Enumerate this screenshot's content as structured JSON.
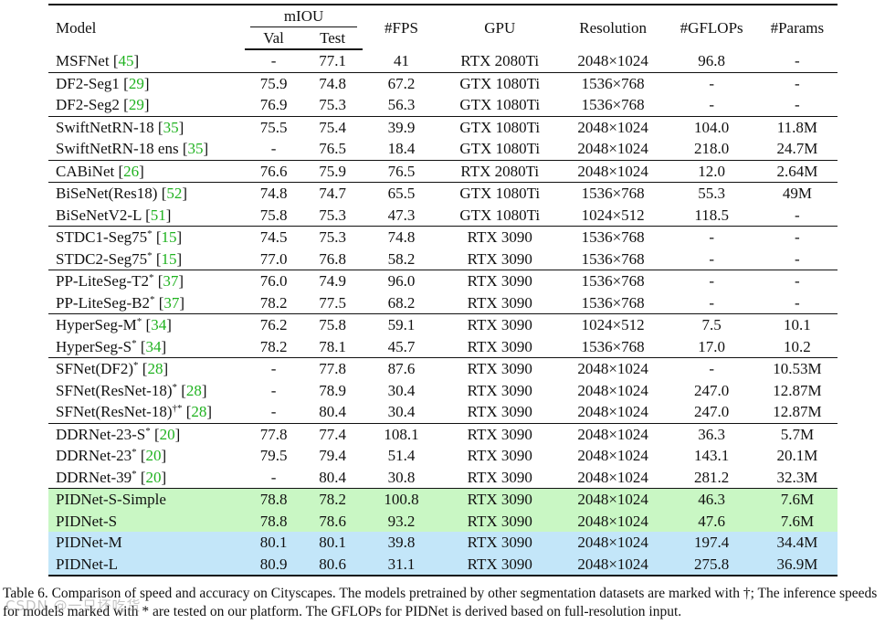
{
  "header": {
    "model": "Model",
    "miou": "mIOU",
    "val": "Val",
    "test": "Test",
    "fps": "#FPS",
    "gpu": "GPU",
    "resolution": "Resolution",
    "gflops": "#GFLOPs",
    "params": "#Params"
  },
  "rows": [
    {
      "name": "MSFNet",
      "sup": "",
      "ref": "45",
      "val": "-",
      "test": "77.1",
      "fps": "41",
      "gpu": "RTX 2080Ti",
      "res": "2048×1024",
      "gflops": "96.8",
      "params": "-"
    },
    {
      "name": "DF2-Seg1",
      "sup": "",
      "ref": "29",
      "val": "75.9",
      "test": "74.8",
      "fps": "67.2",
      "gpu": "GTX 1080Ti",
      "res": "1536×768",
      "gflops": "-",
      "params": "-"
    },
    {
      "name": "DF2-Seg2",
      "sup": "",
      "ref": "29",
      "val": "76.9",
      "test": "75.3",
      "fps": "56.3",
      "gpu": "GTX 1080Ti",
      "res": "1536×768",
      "gflops": "-",
      "params": "-"
    },
    {
      "name": "SwiftNetRN-18",
      "sup": "",
      "ref": "35",
      "val": "75.5",
      "test": "75.4",
      "fps": "39.9",
      "gpu": "GTX 1080Ti",
      "res": "2048×1024",
      "gflops": "104.0",
      "params": "11.8M"
    },
    {
      "name": "SwiftNetRN-18 ens",
      "sup": "",
      "ref": "35",
      "val": "-",
      "test": "76.5",
      "fps": "18.4",
      "gpu": "GTX 1080Ti",
      "res": "2048×1024",
      "gflops": "218.0",
      "params": "24.7M"
    },
    {
      "name": "CABiNet",
      "sup": "",
      "ref": "26",
      "val": "76.6",
      "test": "75.9",
      "fps": "76.5",
      "gpu": "RTX 2080Ti",
      "res": "2048×1024",
      "gflops": "12.0",
      "params": "2.64M"
    },
    {
      "name": "BiSeNet(Res18)",
      "sup": "",
      "ref": "52",
      "val": "74.8",
      "test": "74.7",
      "fps": "65.5",
      "gpu": "GTX 1080Ti",
      "res": "1536×768",
      "gflops": "55.3",
      "params": "49M"
    },
    {
      "name": "BiSeNetV2-L",
      "sup": "",
      "ref": "51",
      "val": "75.8",
      "test": "75.3",
      "fps": "47.3",
      "gpu": "GTX 1080Ti",
      "res": "1024×512",
      "gflops": "118.5",
      "params": "-"
    },
    {
      "name": "STDC1-Seg75",
      "sup": "*",
      "ref": "15",
      "val": "74.5",
      "test": "75.3",
      "fps": "74.8",
      "gpu": "RTX 3090",
      "res": "1536×768",
      "gflops": "-",
      "params": "-"
    },
    {
      "name": "STDC2-Seg75",
      "sup": "*",
      "ref": "15",
      "val": "77.0",
      "test": "76.8",
      "fps": "58.2",
      "gpu": "RTX 3090",
      "res": "1536×768",
      "gflops": "-",
      "params": "-"
    },
    {
      "name": "PP-LiteSeg-T2",
      "sup": "*",
      "ref": "37",
      "val": "76.0",
      "test": "74.9",
      "fps": "96.0",
      "gpu": "RTX 3090",
      "res": "1536×768",
      "gflops": "-",
      "params": "-"
    },
    {
      "name": "PP-LiteSeg-B2",
      "sup": "*",
      "ref": "37",
      "val": "78.2",
      "test": "77.5",
      "fps": "68.2",
      "gpu": "RTX 3090",
      "res": "1536×768",
      "gflops": "-",
      "params": "-"
    },
    {
      "name": "HyperSeg-M",
      "sup": "*",
      "ref": "34",
      "val": "76.2",
      "test": "75.8",
      "fps": "59.1",
      "gpu": "RTX 3090",
      "res": "1024×512",
      "gflops": "7.5",
      "params": "10.1"
    },
    {
      "name": "HyperSeg-S",
      "sup": "*",
      "ref": "34",
      "val": "78.2",
      "test": "78.1",
      "fps": "45.7",
      "gpu": "RTX 3090",
      "res": "1536×768",
      "gflops": "17.0",
      "params": "10.2"
    },
    {
      "name": "SFNet(DF2)",
      "sup": "*",
      "ref": "28",
      "val": "-",
      "test": "77.8",
      "fps": "87.6",
      "gpu": "RTX 3090",
      "res": "2048×1024",
      "gflops": "-",
      "params": "10.53M"
    },
    {
      "name": "SFNet(ResNet-18)",
      "sup": "*",
      "ref": "28",
      "val": "-",
      "test": "78.9",
      "fps": "30.4",
      "gpu": "RTX 3090",
      "res": "2048×1024",
      "gflops": "247.0",
      "params": "12.87M"
    },
    {
      "name": "SFNet(ResNet-18)",
      "sup": "†*",
      "ref": "28",
      "val": "-",
      "test": "80.4",
      "fps": "30.4",
      "gpu": "RTX 3090",
      "res": "2048×1024",
      "gflops": "247.0",
      "params": "12.87M"
    },
    {
      "name": "DDRNet-23-S",
      "sup": "*",
      "ref": "20",
      "val": "77.8",
      "test": "77.4",
      "fps": "108.1",
      "gpu": "RTX 3090",
      "res": "2048×1024",
      "gflops": "36.3",
      "params": "5.7M"
    },
    {
      "name": "DDRNet-23",
      "sup": "*",
      "ref": "20",
      "val": "79.5",
      "test": "79.4",
      "fps": "51.4",
      "gpu": "RTX 3090",
      "res": "2048×1024",
      "gflops": "143.1",
      "params": "20.1M"
    },
    {
      "name": "DDRNet-39",
      "sup": "*",
      "ref": "20",
      "val": "-",
      "test": "80.4",
      "fps": "30.8",
      "gpu": "RTX 3090",
      "res": "2048×1024",
      "gflops": "281.2",
      "params": "32.3M"
    },
    {
      "name": "PIDNet-S-Simple",
      "sup": "",
      "ref": "",
      "val": "78.8",
      "test": "78.2",
      "fps": "100.8",
      "gpu": "RTX 3090",
      "res": "2048×1024",
      "gflops": "46.3",
      "params": "7.6M"
    },
    {
      "name": "PIDNet-S",
      "sup": "",
      "ref": "",
      "val": "78.8",
      "test": "78.6",
      "fps": "93.2",
      "gpu": "RTX 3090",
      "res": "2048×1024",
      "gflops": "47.6",
      "params": "7.6M"
    },
    {
      "name": "PIDNet-M",
      "sup": "",
      "ref": "",
      "val": "80.1",
      "test": "80.1",
      "fps": "39.8",
      "gpu": "RTX 3090",
      "res": "2048×1024",
      "gflops": "197.4",
      "params": "34.4M"
    },
    {
      "name": "PIDNet-L",
      "sup": "",
      "ref": "",
      "val": "80.9",
      "test": "80.6",
      "fps": "31.1",
      "gpu": "RTX 3090",
      "res": "2048×1024",
      "gflops": "275.8",
      "params": "36.9M"
    }
  ],
  "group_starts": [
    0,
    1,
    3,
    5,
    6,
    8,
    10,
    12,
    14,
    17,
    20
  ],
  "highlight_green": [
    20,
    21
  ],
  "highlight_blue": [
    22,
    23
  ],
  "bold_cells": [
    {
      "row": 17,
      "col": "fps"
    },
    {
      "row": 22,
      "col": "val"
    },
    {
      "row": 23,
      "col": "val"
    },
    {
      "row": 23,
      "col": "test"
    }
  ],
  "colors": {
    "ref": "#1fb21f",
    "highlight_green": "#c9f7c4",
    "highlight_blue": "#c3e6f9"
  },
  "caption": "Table 6. Comparison of speed and accuracy on Cityscapes. The models pretrained by other segmentation datasets are marked with †; The inference speeds for models marked with * are tested on our platform. The GFLOPs for PIDNet is derived based on full-resolution input.",
  "watermark": "CSDN @一只坏吃货"
}
